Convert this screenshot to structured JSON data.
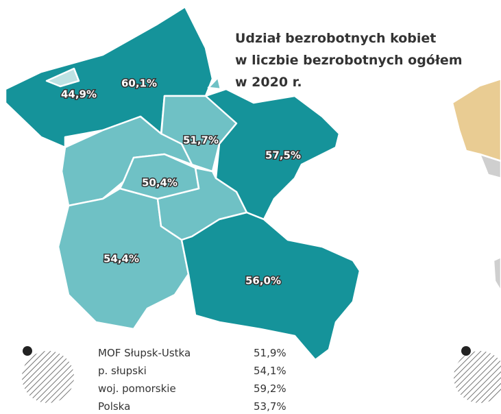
{
  "title": [
    "Udział bezrobotnych kobiet",
    "w liczbie bezrobotnych ogółem",
    "w 2020 r."
  ],
  "regions": [
    {
      "label": "44,9%"
    },
    {
      "label": "60,1%"
    },
    {
      "label": "51,7%"
    },
    {
      "label": "57,5%"
    },
    {
      "label": "50,4%"
    },
    {
      "label": "54,4%"
    },
    {
      "label": "56,0%"
    }
  ],
  "summary": [
    {
      "name": "MOF Słupsk-Ustka",
      "value": "51,9%"
    },
    {
      "name": "p. słupski",
      "value": "54,1%"
    },
    {
      "name": "woj. pomorskie",
      "value": "59,2%"
    },
    {
      "name": "Polska",
      "value": "53,7%"
    }
  ]
}
